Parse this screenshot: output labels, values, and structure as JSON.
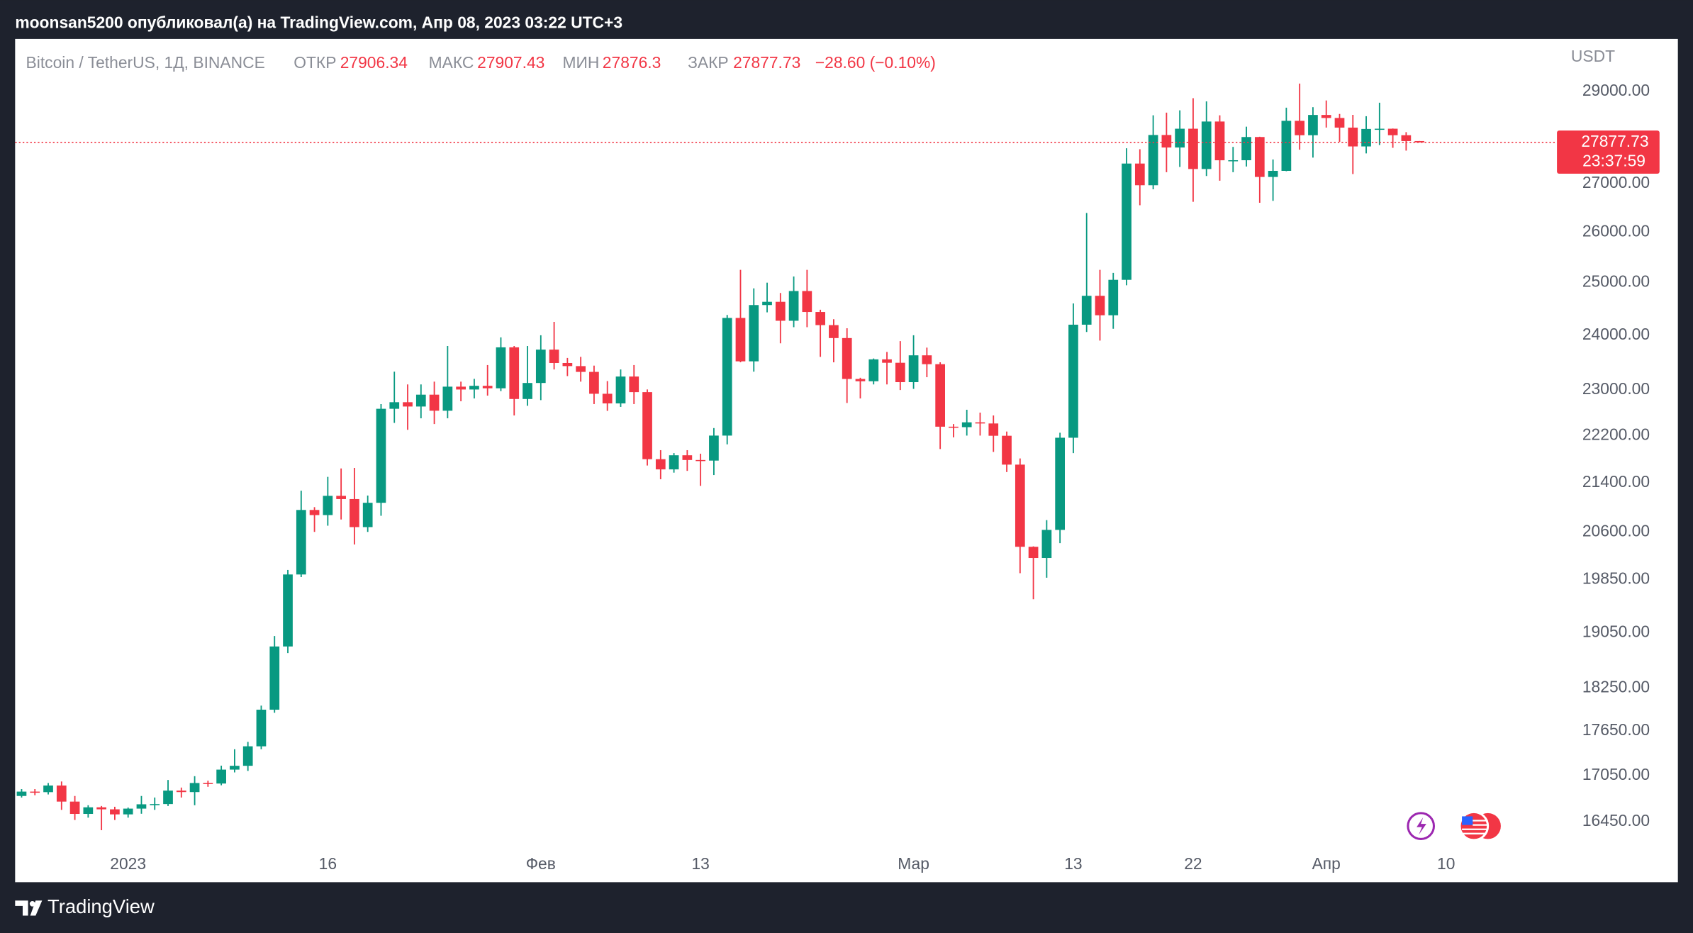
{
  "header": {
    "publisher": "moonsan5200 опубликовал(а) на TradingView.com, Апр 08, 2023 03:22 UTC+3",
    "brand": "TradingView"
  },
  "chart_data": {
    "type": "candlestick",
    "title": "Bitcoin / TetherUS, 1Д, BINANCE",
    "ohlc_labels": {
      "open": "ОТКР",
      "high": "МАКС",
      "low": "МИН",
      "close": "ЗАКР"
    },
    "change": "−28.60 (−0.10%)",
    "y_unit": "USDT",
    "countdown": "23:37:59",
    "log_scale": true,
    "up_color": "#089981",
    "down_color": "#f23645",
    "ylim": [
      16120,
      30210
    ],
    "yticks": [
      {
        "value": 29000,
        "label": "29000.00"
      },
      {
        "value": 27000,
        "label": "27000.00"
      },
      {
        "value": 26000,
        "label": "26000.00"
      },
      {
        "value": 25000,
        "label": "25000.00"
      },
      {
        "value": 24000,
        "label": "24000.00"
      },
      {
        "value": 23000,
        "label": "23000.00"
      },
      {
        "value": 22200,
        "label": "22200.00"
      },
      {
        "value": 21400,
        "label": "21400.00"
      },
      {
        "value": 20600,
        "label": "20600.00"
      },
      {
        "value": 19850,
        "label": "19850.00"
      },
      {
        "value": 19050,
        "label": "19050.00"
      },
      {
        "value": 18250,
        "label": "18250.00"
      },
      {
        "value": 17650,
        "label": "17650.00"
      },
      {
        "value": 17050,
        "label": "17050.00"
      },
      {
        "value": 16450,
        "label": "16450.00"
      }
    ],
    "categories": [
      null,
      null,
      null,
      null,
      null,
      null,
      null,
      null,
      "2023",
      null,
      null,
      null,
      null,
      null,
      null,
      null,
      null,
      null,
      null,
      null,
      null,
      null,
      null,
      "16",
      null,
      null,
      null,
      null,
      null,
      null,
      null,
      null,
      null,
      null,
      null,
      null,
      null,
      null,
      null,
      "Фев",
      null,
      null,
      null,
      null,
      null,
      null,
      null,
      null,
      null,
      null,
      null,
      "13",
      null,
      null,
      null,
      null,
      null,
      null,
      null,
      null,
      null,
      null,
      null,
      null,
      null,
      null,
      null,
      "Мар",
      null,
      null,
      null,
      null,
      null,
      null,
      null,
      null,
      null,
      null,
      null,
      "13",
      null,
      null,
      null,
      null,
      null,
      null,
      null,
      null,
      "22",
      null,
      null,
      null,
      null,
      null,
      null,
      null,
      null,
      null,
      "Апр",
      null,
      null,
      null,
      null,
      null,
      null,
      null,
      null,
      "10"
    ],
    "open": [
      16780,
      16837,
      16830,
      16917,
      16707,
      16548,
      16633,
      16607,
      16542,
      16616,
      16672,
      16675,
      16850,
      16831,
      16950,
      16943,
      17127,
      17178,
      17440,
      17943,
      18846,
      19930,
      20954,
      20871,
      21185,
      21132,
      20677,
      21071,
      22667,
      22783,
      22707,
      22917,
      22633,
      23060,
      23009,
      23075,
      23031,
      23775,
      22840,
      23126,
      23733,
      23488,
      23431,
      23326,
      22933,
      22762,
      23242,
      22962,
      21797,
      21625,
      21863,
      21783,
      21773,
      22200,
      24324,
      23518,
      24569,
      24631,
      24271,
      24838,
      24437,
      24189,
      23947,
      23198,
      23157,
      23554,
      23492,
      23141,
      23628,
      23466,
      22354,
      22346,
      22430,
      22410,
      22197,
      21705,
      20363,
      20187,
      20632,
      22163,
      24197,
      24746,
      24375,
      25055,
      27423,
      26965,
      28038,
      27767,
      28175,
      27307,
      28333,
      27493,
      27494,
      27994,
      27139,
      27268,
      28348,
      28033,
      28478,
      28411,
      28199,
      27790,
      28170,
      28175,
      28033,
      27906.34,
      null,
      null
    ],
    "high": [
      16870,
      16870,
      16950,
      16970,
      16780,
      16660,
      16650,
      16640,
      16630,
      16780,
      16760,
      16990,
      16890,
      17040,
      16980,
      17180,
      17400,
      17500,
      18000,
      19000,
      20000,
      21270,
      21000,
      21500,
      21640,
      21650,
      21190,
      22750,
      23330,
      23100,
      23100,
      23150,
      23800,
      23150,
      23200,
      23450,
      23960,
      23800,
      23800,
      24000,
      24250,
      23580,
      23600,
      23440,
      23160,
      23370,
      23450,
      23010,
      21950,
      21900,
      21950,
      21890,
      22330,
      24380,
      25250,
      24890,
      25000,
      24800,
      25120,
      25250,
      24480,
      24300,
      24130,
      23220,
      23570,
      23690,
      23890,
      24000,
      23770,
      23500,
      22400,
      22650,
      22600,
      22550,
      22270,
      21810,
      20370,
      20790,
      22250,
      24600,
      26390,
      25250,
      25190,
      27750,
      27730,
      28470,
      28530,
      28580,
      28850,
      28780,
      28470,
      27780,
      28220,
      28000,
      27510,
      28640,
      29180,
      28650,
      28800,
      28500,
      28480,
      28450,
      28750,
      28180,
      28100,
      27907.43,
      null,
      null
    ],
    "low": [
      16760,
      16790,
      16800,
      16600,
      16470,
      16500,
      16340,
      16470,
      16500,
      16550,
      16600,
      16650,
      16760,
      16660,
      16900,
      16920,
      17090,
      17110,
      17400,
      17900,
      18750,
      19890,
      20600,
      20700,
      20800,
      20400,
      20600,
      20860,
      22420,
      22300,
      22500,
      22400,
      22500,
      22800,
      22850,
      22900,
      22980,
      22550,
      22720,
      22820,
      23370,
      23250,
      23150,
      22750,
      22630,
      22700,
      22750,
      21690,
      21460,
      21570,
      21600,
      21350,
      21530,
      22050,
      23500,
      23330,
      24430,
      23850,
      24150,
      24150,
      23600,
      23500,
      22770,
      22850,
      23100,
      23100,
      23000,
      23020,
      23230,
      21970,
      22170,
      22200,
      22200,
      21920,
      21580,
      19950,
      19550,
      19880,
      20420,
      21900,
      24060,
      23900,
      24120,
      24950,
      26550,
      26880,
      27240,
      27350,
      26620,
      27160,
      27060,
      27240,
      27360,
      26600,
      26640,
      27260,
      27720,
      27550,
      28200,
      27890,
      27200,
      27640,
      27820,
      27760,
      27700,
      27876.3,
      null,
      null
    ],
    "close": [
      16837,
      16830,
      16917,
      16707,
      16548,
      16633,
      16607,
      16542,
      16616,
      16672,
      16675,
      16850,
      16831,
      16950,
      16943,
      17127,
      17178,
      17440,
      17943,
      18846,
      19930,
      20954,
      20871,
      21185,
      21132,
      20677,
      21071,
      22667,
      22783,
      22707,
      22917,
      22633,
      23060,
      23009,
      23075,
      23031,
      23775,
      22840,
      23126,
      23733,
      23488,
      23431,
      23326,
      22933,
      22762,
      23242,
      22962,
      21797,
      21625,
      21863,
      21783,
      21773,
      22200,
      24324,
      23518,
      24569,
      24631,
      24271,
      24838,
      24437,
      24189,
      23947,
      23198,
      23157,
      23554,
      23492,
      23141,
      23628,
      23466,
      22354,
      22346,
      22430,
      22410,
      22197,
      21705,
      20363,
      20187,
      20632,
      22163,
      24197,
      24746,
      24375,
      25055,
      27423,
      26965,
      28038,
      27767,
      28175,
      27307,
      28333,
      27493,
      27494,
      27994,
      27139,
      27268,
      28348,
      28033,
      28478,
      28411,
      28199,
      27790,
      28170,
      28175,
      28033,
      27906.34,
      27877.73,
      null,
      null
    ]
  }
}
